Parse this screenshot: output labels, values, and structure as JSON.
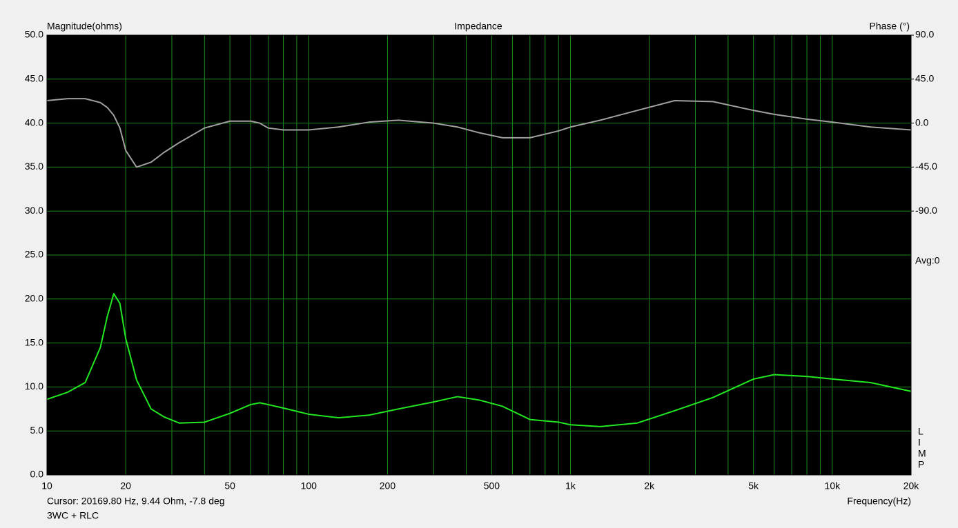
{
  "chart_data": {
    "type": "line",
    "title": "Impedance",
    "y_label": "Magnitude(ohms)",
    "y2_label": "Phase (°)",
    "x_label": "Frequency(Hz)",
    "annotation": "Avg:0",
    "side_letters": [
      "L",
      "I",
      "M",
      "P"
    ],
    "cursor": "Cursor: 20169.80 Hz, 9.44 Ohm, -7.8 deg",
    "legend_text": "3WC + RLC",
    "log_x": true,
    "grid": true,
    "x": [
      10,
      12,
      14,
      16,
      17,
      18,
      19,
      20,
      22,
      25,
      28,
      32,
      40,
      50,
      60,
      65,
      70,
      80,
      100,
      130,
      170,
      220,
      300,
      370,
      450,
      550,
      700,
      900,
      1000,
      1300,
      1800,
      2500,
      3500,
      5000,
      6000,
      8000,
      10000,
      14000,
      20000
    ],
    "series": [
      {
        "name": "Magnitude",
        "color": "#22e822",
        "values": [
          8.6,
          9.4,
          10.5,
          14.5,
          18,
          20.6,
          19.5,
          15.5,
          10.8,
          7.5,
          6.6,
          5.9,
          6.0,
          7.0,
          8.0,
          8.2,
          8.0,
          7.6,
          6.9,
          6.5,
          6.8,
          7.5,
          8.3,
          8.9,
          8.5,
          7.8,
          6.3,
          6.0,
          5.7,
          5.5,
          5.9,
          7.3,
          8.8,
          10.9,
          11.4,
          11.2,
          10.9,
          10.5,
          9.5
        ]
      },
      {
        "name": "Phase",
        "color": "#a0a0a0",
        "axis": "y2",
        "values": [
          23,
          25,
          25,
          21,
          16,
          8,
          -5,
          -28,
          -45,
          -40,
          -30,
          -20,
          -5,
          2,
          2,
          0,
          -5,
          -7,
          -7,
          -4,
          1,
          3,
          0,
          -4,
          -10,
          -15,
          -15,
          -8,
          -4,
          3,
          13,
          23,
          22,
          13,
          9,
          4,
          1,
          -4,
          -7
        ]
      }
    ],
    "xlim": [
      10,
      20000
    ],
    "xticks": [
      10,
      20,
      50,
      100,
      200,
      500,
      {
        "value": 1000,
        "label": "1k"
      },
      {
        "value": 2000,
        "label": "2k"
      },
      {
        "value": 5000,
        "label": "5k"
      },
      {
        "value": 10000,
        "label": "10k"
      },
      {
        "value": 20000,
        "label": "20k"
      }
    ],
    "xminorticks": [
      30,
      40,
      60,
      70,
      80,
      90,
      300,
      400,
      600,
      700,
      800,
      900,
      3000,
      4000,
      6000,
      7000,
      8000,
      9000
    ],
    "ylim": [
      0,
      50
    ],
    "yticks": [
      {
        "value": 0,
        "label": "0.0"
      },
      {
        "value": 5,
        "label": "5.0"
      },
      {
        "value": 10,
        "label": "10.0"
      },
      {
        "value": 15,
        "label": "15.0"
      },
      {
        "value": 20,
        "label": "20.0"
      },
      {
        "value": 25,
        "label": "25.0"
      },
      {
        "value": 30,
        "label": "30.0"
      },
      {
        "value": 35,
        "label": "35.0"
      },
      {
        "value": 40,
        "label": "40.0"
      },
      {
        "value": 45,
        "label": "45.0"
      },
      {
        "value": 50,
        "label": "50.0"
      }
    ],
    "y2lim": [
      -360,
      90
    ],
    "y2ticks": [
      {
        "value": 90,
        "label": "90.0"
      },
      {
        "value": 45,
        "label": "45.0"
      },
      {
        "value": 0,
        "label": "0.0"
      },
      {
        "value": -45,
        "label": "-45.0"
      },
      {
        "value": -90,
        "label": "-90.0"
      }
    ]
  }
}
